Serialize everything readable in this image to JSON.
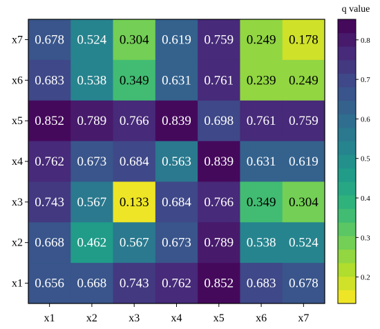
{
  "chart_data": {
    "type": "heatmap",
    "x_categories": [
      "x1",
      "x2",
      "x3",
      "x4",
      "x5",
      "x6",
      "x7"
    ],
    "y_categories": [
      "x7",
      "x6",
      "x5",
      "x4",
      "x3",
      "x2",
      "x1"
    ],
    "values": [
      [
        0.678,
        0.524,
        0.304,
        0.619,
        0.759,
        0.249,
        0.178
      ],
      [
        0.683,
        0.538,
        0.349,
        0.631,
        0.761,
        0.239,
        0.249
      ],
      [
        0.852,
        0.789,
        0.766,
        0.839,
        0.698,
        0.761,
        0.759
      ],
      [
        0.762,
        0.673,
        0.684,
        0.563,
        0.839,
        0.631,
        0.619
      ],
      [
        0.743,
        0.567,
        0.133,
        0.684,
        0.766,
        0.349,
        0.304
      ],
      [
        0.668,
        0.462,
        0.567,
        0.673,
        0.789,
        0.538,
        0.524
      ],
      [
        0.656,
        0.668,
        0.743,
        0.762,
        0.852,
        0.683,
        0.678
      ]
    ],
    "value_labels": [
      [
        "0.678",
        "0.524",
        "0.304",
        "0.619",
        "0.759",
        "0.249",
        "0.178"
      ],
      [
        "0.683",
        "0.538",
        "0.349",
        "0.631",
        "0.761",
        "0.239",
        "0.249"
      ],
      [
        "0.852",
        "0.789",
        "0.766",
        "0.839",
        "0.698",
        "0.761",
        "0.759"
      ],
      [
        "0.762",
        "0.673",
        "0.684",
        "0.563",
        "0.839",
        "0.631",
        "0.619"
      ],
      [
        "0.743",
        "0.567",
        "0.133",
        "0.684",
        "0.766",
        "0.349",
        "0.304"
      ],
      [
        "0.668",
        "0.462",
        "0.567",
        "0.673",
        "0.789",
        "0.538",
        "0.524"
      ],
      [
        "0.656",
        "0.668",
        "0.743",
        "0.762",
        "0.852",
        "0.683",
        "0.678"
      ]
    ],
    "colorbar": {
      "title": "q value",
      "range": [
        0.133,
        0.852
      ],
      "ticks": [
        0.2,
        0.3,
        0.4,
        0.5,
        0.6,
        0.7,
        0.8
      ],
      "tick_labels": [
        "0.2",
        "0.3",
        "0.4",
        "0.5",
        "0.6",
        "0.7",
        "0.8"
      ],
      "colormap": "viridis_r",
      "levels": 21
    },
    "text_colors": {
      "light": "#ffffff",
      "dark": "#000000"
    },
    "title": "",
    "xlabel": "",
    "ylabel": ""
  }
}
